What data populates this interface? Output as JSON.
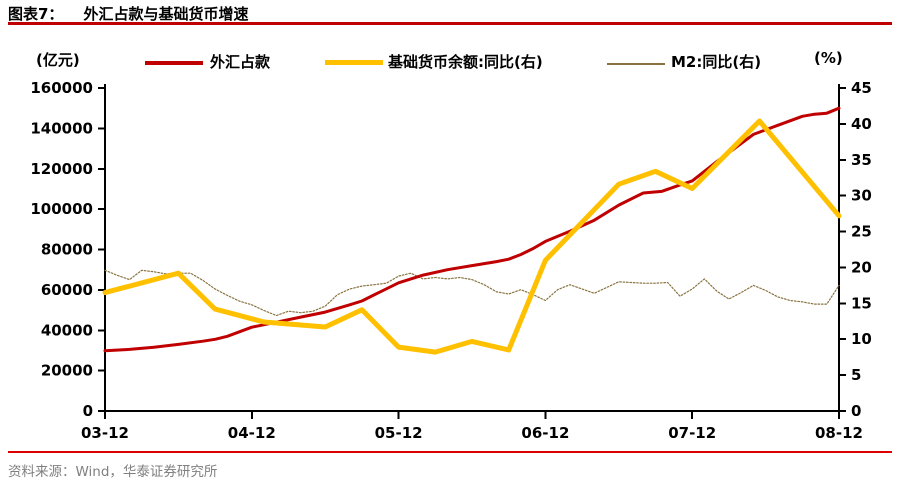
{
  "header": {
    "label": "图表7：",
    "title": "外汇占款与基础货币增速"
  },
  "footer": {
    "source": "资料来源：Wind，华泰证券研究所"
  },
  "chart_data": {
    "type": "line",
    "title": "外汇占款与基础货币增速",
    "grid": false,
    "legend_position": "top",
    "x_unit": "months_since_2003-12",
    "x_range": [
      0,
      60
    ],
    "x_tick_months": [
      0,
      12,
      24,
      36,
      48,
      60
    ],
    "x_tick_labels": [
      "03-12",
      "04-12",
      "05-12",
      "06-12",
      "07-12",
      "08-12"
    ],
    "left_axis": {
      "label": "(亿元)",
      "min": 0,
      "max": 160000,
      "step": 20000,
      "ticks": [
        0,
        20000,
        40000,
        60000,
        80000,
        100000,
        120000,
        140000,
        160000
      ]
    },
    "right_axis": {
      "label": "(%)",
      "min": 0,
      "max": 45,
      "step": 5,
      "ticks": [
        0,
        5,
        10,
        15,
        20,
        25,
        30,
        35,
        40,
        45
      ]
    },
    "draw_order": [
      2,
      0,
      1
    ],
    "series": [
      {
        "name": "外汇占款",
        "axis": "left",
        "color": "#C00000",
        "width": 3,
        "style": "solid",
        "points": [
          [
            0,
            29800
          ],
          [
            2,
            30500
          ],
          [
            4,
            31600
          ],
          [
            6,
            33000
          ],
          [
            8,
            34600
          ],
          [
            9,
            35500
          ],
          [
            10,
            37000
          ],
          [
            12,
            41500
          ],
          [
            14,
            44000
          ],
          [
            16,
            46500
          ],
          [
            18,
            49000
          ],
          [
            20,
            52600
          ],
          [
            21,
            54500
          ],
          [
            22,
            57500
          ],
          [
            24,
            63500
          ],
          [
            26,
            67300
          ],
          [
            28,
            70000
          ],
          [
            30,
            72000
          ],
          [
            32,
            74000
          ],
          [
            33,
            75200
          ],
          [
            34,
            77500
          ],
          [
            35,
            80500
          ],
          [
            36,
            84000
          ],
          [
            38,
            89000
          ],
          [
            40,
            94500
          ],
          [
            42,
            102000
          ],
          [
            44,
            108000
          ],
          [
            45.5,
            108800
          ],
          [
            47,
            112000
          ],
          [
            48,
            114000
          ],
          [
            50,
            123500
          ],
          [
            52,
            132500
          ],
          [
            53,
            137000
          ],
          [
            55,
            141500
          ],
          [
            57,
            146000
          ],
          [
            58,
            147000
          ],
          [
            59,
            147500
          ],
          [
            60,
            150000
          ]
        ]
      },
      {
        "name": "基础货币余额:同比(右)",
        "axis": "right",
        "color": "#FFC000",
        "width": 5,
        "style": "solid",
        "points": [
          [
            0,
            16.5
          ],
          [
            6,
            19.2
          ],
          [
            9,
            14.2
          ],
          [
            13,
            12.4
          ],
          [
            18,
            11.7
          ],
          [
            21,
            14.1
          ],
          [
            24,
            8.9
          ],
          [
            27,
            8.2
          ],
          [
            30,
            9.7
          ],
          [
            33,
            8.5
          ],
          [
            36,
            21.0
          ],
          [
            42,
            31.6
          ],
          [
            45,
            33.4
          ],
          [
            48,
            31.0
          ],
          [
            53.5,
            40.4
          ],
          [
            60,
            27.2
          ]
        ]
      },
      {
        "name": "M2:同比(右)",
        "axis": "right",
        "color": "#8A7340",
        "width": 1.2,
        "style": "dotted",
        "points": [
          [
            0,
            19.6
          ],
          [
            1,
            18.9
          ],
          [
            2,
            18.3
          ],
          [
            3,
            19.6
          ],
          [
            4,
            19.4
          ],
          [
            5,
            19.1
          ],
          [
            6,
            19.2
          ],
          [
            7,
            19.2
          ],
          [
            8,
            18.2
          ],
          [
            9,
            17.0
          ],
          [
            10,
            16.1
          ],
          [
            11,
            15.3
          ],
          [
            12,
            14.8
          ],
          [
            13,
            14.0
          ],
          [
            14,
            13.3
          ],
          [
            15,
            13.9
          ],
          [
            16,
            13.7
          ],
          [
            17,
            13.9
          ],
          [
            18,
            14.6
          ],
          [
            19,
            16.2
          ],
          [
            20,
            17.0
          ],
          [
            21,
            17.4
          ],
          [
            22,
            17.6
          ],
          [
            23,
            17.8
          ],
          [
            24,
            18.8
          ],
          [
            25,
            19.2
          ],
          [
            26,
            18.4
          ],
          [
            27,
            18.6
          ],
          [
            28,
            18.4
          ],
          [
            29,
            18.6
          ],
          [
            30,
            18.3
          ],
          [
            31,
            17.6
          ],
          [
            32,
            16.6
          ],
          [
            33,
            16.3
          ],
          [
            34,
            16.9
          ],
          [
            35,
            16.2
          ],
          [
            36,
            15.4
          ],
          [
            37,
            16.9
          ],
          [
            38,
            17.6
          ],
          [
            39,
            17.0
          ],
          [
            40,
            16.4
          ],
          [
            41,
            17.2
          ],
          [
            42,
            18.0
          ],
          [
            43,
            17.9
          ],
          [
            44,
            17.8
          ],
          [
            45,
            17.8
          ],
          [
            46,
            17.9
          ],
          [
            47,
            16.0
          ],
          [
            48,
            17.0
          ],
          [
            49,
            18.4
          ],
          [
            50,
            16.7
          ],
          [
            51,
            15.6
          ],
          [
            52,
            16.5
          ],
          [
            53,
            17.5
          ],
          [
            54,
            16.8
          ],
          [
            55,
            15.9
          ],
          [
            56,
            15.4
          ],
          [
            57,
            15.2
          ],
          [
            58,
            14.9
          ],
          [
            59,
            14.9
          ],
          [
            60,
            17.5
          ]
        ]
      }
    ]
  }
}
